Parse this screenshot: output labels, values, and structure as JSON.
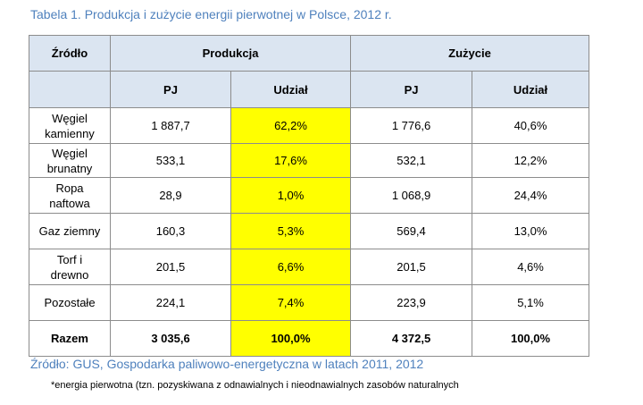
{
  "caption": "Tabela 1. Produkcja i zużycie energii pierwotnej w Polsce, 2012 r.",
  "table": {
    "header": {
      "source": "Źródło",
      "production": "Produkcja",
      "consumption": "Zużycie",
      "pj": "PJ",
      "share": "Udział"
    },
    "rows": [
      {
        "label_1": "Węgiel",
        "label_2": "kamienny",
        "prod_pj": "1 887,7",
        "prod_share": "62,2%",
        "cons_pj": "1 776,6",
        "cons_share": "40,6%"
      },
      {
        "label_1": "Węgiel",
        "label_2": "brunatny",
        "prod_pj": "533,1",
        "prod_share": "17,6%",
        "cons_pj": "532,1",
        "cons_share": "12,2%"
      },
      {
        "label_1": "Ropa",
        "label_2": "naftowa",
        "prod_pj": "28,9",
        "prod_share": "1,0%",
        "cons_pj": "1 068,9",
        "cons_share": "24,4%"
      },
      {
        "label_1": "Gaz ziemny",
        "label_2": "",
        "prod_pj": "160,3",
        "prod_share": "5,3%",
        "cons_pj": "569,4",
        "cons_share": "13,0%"
      },
      {
        "label_1": "Torf i",
        "label_2": "drewno",
        "prod_pj": "201,5",
        "prod_share": "6,6%",
        "cons_pj": "201,5",
        "cons_share": "4,6%"
      },
      {
        "label_1": "Pozostałe",
        "label_2": "",
        "prod_pj": "224,1",
        "prod_share": "7,4%",
        "cons_pj": "223,9",
        "cons_share": "5,1%"
      }
    ],
    "total": {
      "label": "Razem",
      "prod_pj": "3 035,6",
      "prod_share": "100,0%",
      "cons_pj": "4 372,5",
      "cons_share": "100,0%"
    }
  },
  "source_note": "Źródło: GUS, Gospodarka paliwowo-energetyczna w latach 2011, 2012",
  "footnote": "*energia pierwotna (tzn. pozyskiwana z odnawialnych i nieodnawialnych zasobów naturalnych",
  "colors": {
    "caption": "#4f81bd",
    "header_bg": "#dbe5f1",
    "highlight": "#ffff00",
    "border": "#8c8c8c"
  }
}
